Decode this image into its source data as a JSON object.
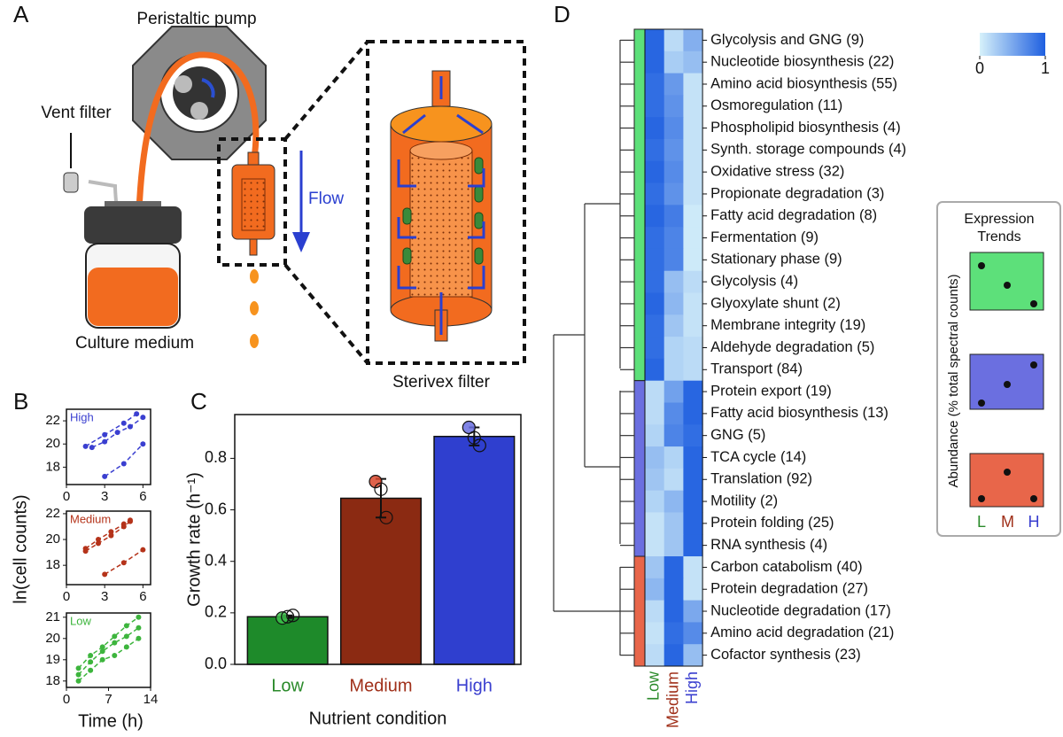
{
  "panel_labels": [
    "A",
    "B",
    "C",
    "D"
  ],
  "diagram": {
    "pump": "Peristaltic pump",
    "vent": "Vent filter",
    "medium": "Culture medium",
    "flow": "Flow",
    "sterivex": "Sterivex filter"
  },
  "trends": {
    "title": "Expression Trends",
    "ylabel": "Abundance (% total spectral counts)",
    "xlabels": [
      "L",
      "M",
      "H"
    ],
    "xlabel_colors": [
      "#2a8a2a",
      "#a0301a",
      "#3a3fcf"
    ]
  },
  "chart_data": [
    {
      "type": "scatter",
      "title": "High",
      "color": "#3a3fd0",
      "xlim": [
        0,
        6.6
      ],
      "xticks": [
        0,
        3,
        6
      ],
      "ylim": [
        16.5,
        23
      ],
      "yticks": [
        18,
        20,
        22
      ],
      "series": [
        {
          "x": [
            1.5,
            3,
            4.5,
            5.5
          ],
          "y": [
            19.8,
            20.8,
            21.8,
            22.6
          ]
        },
        {
          "x": [
            2,
            3,
            4,
            5,
            6
          ],
          "y": [
            19.7,
            20.2,
            21.0,
            21.5,
            22.3
          ]
        },
        {
          "x": [
            3,
            4.5,
            6
          ],
          "y": [
            17.2,
            18.3,
            20.0
          ]
        }
      ]
    },
    {
      "type": "scatter",
      "title": "Medium",
      "color": "#b5331a",
      "xlim": [
        0,
        6.6
      ],
      "xticks": [
        0,
        3,
        6
      ],
      "ylim": [
        16.5,
        22.2
      ],
      "yticks": [
        18,
        20,
        22
      ],
      "ylabel": "ln(cell counts)",
      "series": [
        {
          "x": [
            1.5,
            2.5,
            3.5,
            4.5,
            5
          ],
          "y": [
            19.3,
            20,
            20.6,
            21.2,
            21.5
          ]
        },
        {
          "x": [
            1.5,
            2.5,
            3.5,
            4.5,
            5
          ],
          "y": [
            19.1,
            19.7,
            20.3,
            21,
            21.4
          ]
        },
        {
          "x": [
            3,
            4.5,
            6
          ],
          "y": [
            17.3,
            18.2,
            19.2
          ]
        }
      ]
    },
    {
      "type": "scatter",
      "title": "Low",
      "color": "#3db53d",
      "xlim": [
        0,
        14
      ],
      "xticks": [
        0,
        7,
        14
      ],
      "ylim": [
        17.7,
        21.2
      ],
      "yticks": [
        18,
        19,
        20,
        21
      ],
      "xlabel": "Time (h)",
      "series": [
        {
          "x": [
            2,
            4,
            6,
            8,
            10,
            12
          ],
          "y": [
            18.6,
            19.2,
            19.6,
            20.1,
            20.6,
            21
          ]
        },
        {
          "x": [
            2,
            4,
            6,
            8,
            10,
            12
          ],
          "y": [
            18.3,
            18.9,
            19.4,
            19.8,
            20.1,
            20.5
          ]
        },
        {
          "x": [
            2,
            4,
            6,
            8,
            10,
            12
          ],
          "y": [
            18,
            18.5,
            19,
            19.2,
            19.6,
            20
          ]
        }
      ]
    },
    {
      "type": "bar",
      "categories": [
        "Low",
        "Medium",
        "High"
      ],
      "values": [
        0.185,
        0.645,
        0.885
      ],
      "errors": [
        0.005,
        0.075,
        0.035
      ],
      "points": [
        [
          0.18,
          0.185,
          0.19
        ],
        [
          0.71,
          0.68,
          0.57
        ],
        [
          0.92,
          0.88,
          0.85
        ]
      ],
      "colors": [
        "#1e8a2a",
        "#8b2a12",
        "#2f3fcf"
      ],
      "point_colors": [
        "#3cbf4a",
        "#d9472b",
        "#6a6fe0"
      ],
      "label_colors": [
        "#2a8a2a",
        "#a0301a",
        "#3a3fcf"
      ],
      "ylim": [
        0,
        0.97
      ],
      "yticks": [
        {
          "value": 0,
          "label": "0.0"
        },
        0.2,
        0.4,
        0.6,
        0.8
      ],
      "ylabel": "Growth rate (h⁻¹)",
      "xlabel": "Nutrient condition"
    },
    {
      "type": "heatmap",
      "columns": [
        "Low",
        "Medium",
        "High"
      ],
      "column_colors": [
        "#2a8a2a",
        "#a0301a",
        "#3a3fcf"
      ],
      "rows": [
        "Glycolysis and GNG (9)",
        "Nucleotide biosynthesis (22)",
        "Amino acid biosynthesis (55)",
        "Osmoregulation (11)",
        "Phospholipid biosynthesis (4)",
        "Synth. storage compounds (4)",
        "Oxidative stress (32)",
        "Propionate degradation (3)",
        "Fatty acid degradation (8)",
        "Fermentation (9)",
        "Stationary phase (9)",
        "Glycolysis (4)",
        "Glyoxylate shunt (2)",
        "Membrane integrity (19)",
        "Aldehyde degradation (5)",
        "Transport (84)",
        "Protein export (19)",
        "Fatty acid biosynthesis (13)",
        "GNG (5)",
        "TCA cycle (14)",
        "Translation (92)",
        "Motility (2)",
        "Protein folding (25)",
        "RNA synthesis (4)",
        "Carbon catabolism (40)",
        "Protein degradation (27)",
        "Nucleotide degradation (17)",
        "Amino acid degradation (21)",
        "Cofactor synthesis (23)"
      ],
      "values": [
        [
          0.95,
          0.15,
          0.45
        ],
        [
          0.95,
          0.25,
          0.35
        ],
        [
          0.9,
          0.6,
          0.1
        ],
        [
          0.9,
          0.65,
          0.1
        ],
        [
          0.95,
          0.7,
          0.1
        ],
        [
          0.9,
          0.65,
          0.1
        ],
        [
          0.95,
          0.7,
          0.1
        ],
        [
          0.9,
          0.65,
          0.1
        ],
        [
          0.95,
          0.8,
          0.05
        ],
        [
          0.9,
          0.75,
          0.05
        ],
        [
          0.9,
          0.75,
          0.05
        ],
        [
          0.9,
          0.35,
          0.15
        ],
        [
          0.95,
          0.4,
          0.1
        ],
        [
          0.9,
          0.3,
          0.1
        ],
        [
          0.9,
          0.2,
          0.15
        ],
        [
          0.95,
          0.2,
          0.15
        ],
        [
          0.15,
          0.55,
          0.95
        ],
        [
          0.15,
          0.7,
          0.95
        ],
        [
          0.2,
          0.75,
          0.9
        ],
        [
          0.35,
          0.2,
          0.95
        ],
        [
          0.3,
          0.15,
          0.95
        ],
        [
          0.2,
          0.4,
          0.95
        ],
        [
          0.1,
          0.3,
          0.95
        ],
        [
          0.1,
          0.3,
          0.95
        ],
        [
          0.3,
          0.95,
          0.1
        ],
        [
          0.4,
          0.95,
          0.1
        ],
        [
          0.15,
          0.95,
          0.5
        ],
        [
          0.1,
          0.9,
          0.7
        ],
        [
          0.15,
          0.95,
          0.35
        ]
      ],
      "clusters": [
        {
          "color": "#5de07a",
          "size": 16
        },
        {
          "color": "#6b6fe0",
          "size": 8
        },
        {
          "color": "#e8664a",
          "size": 5
        }
      ],
      "vlim": [
        0,
        1
      ],
      "colorbar": {
        "ticks": [
          0,
          1
        ],
        "colors": [
          "#d6f1fa",
          "#1f5fe0"
        ]
      }
    }
  ]
}
